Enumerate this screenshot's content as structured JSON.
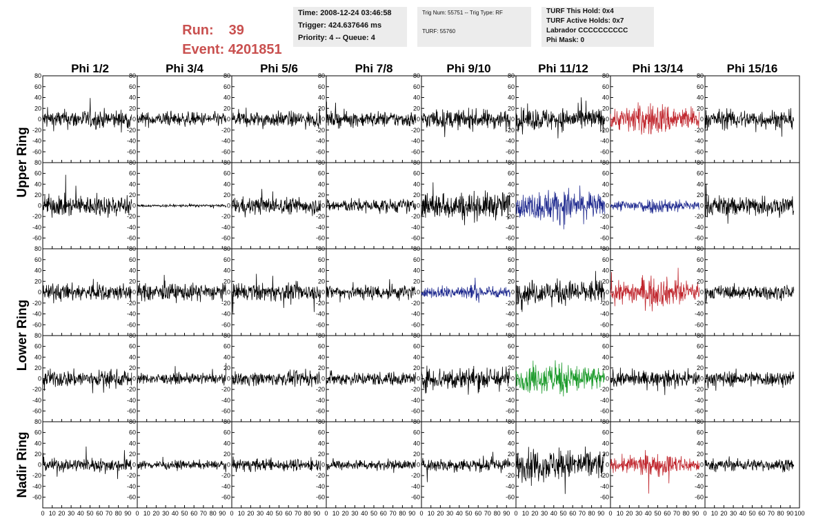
{
  "header": {
    "run_label": "Run:",
    "run_value": "39",
    "event_label": "Event:",
    "event_value": "4201851",
    "time_line": "Time: 2008-12-24 03:46:58",
    "trigger_line": "Trigger: 424.637646 ms",
    "priority_line": "Priority: 4 -- Queue: 4",
    "trig_num_line": "Trig Num: 55751 -- Trig Type: RF",
    "turf_line": "TURF: 55760",
    "turf_hold_line": "TURF This Hold: 0x4",
    "turf_active_line": "TURF Active Holds: 0x7",
    "labrador_line": "Labrador CCCCCCCCCC",
    "phi_mask_line": "Phi Mask: 0"
  },
  "colors": {
    "header_red": "#c9504f",
    "default_trace": "#000000",
    "red": "#c0262d",
    "blue": "#1f2a8f",
    "green": "#1b9a2a"
  },
  "chart_data": {
    "type": "line",
    "columns": [
      "Phi 1/2",
      "Phi 3/4",
      "Phi 5/6",
      "Phi 7/8",
      "Phi 9/10",
      "Phi 11/12",
      "Phi 13/14",
      "Phi 15/16"
    ],
    "row_labels": [
      "Upper Ring",
      "Lower Ring",
      "Nadir Ring"
    ],
    "rows": 5,
    "ylim": [
      -80,
      80
    ],
    "yticks": [
      -60,
      -40,
      -20,
      0,
      20,
      40,
      60,
      80
    ],
    "xlim": [
      0,
      100
    ],
    "xticks": [
      0,
      10,
      20,
      30,
      40,
      50,
      60,
      70,
      80,
      90,
      100
    ],
    "amplitude": [
      [
        22,
        16,
        18,
        18,
        22,
        26,
        38,
        22
      ],
      [
        24,
        3,
        20,
        16,
        32,
        40,
        18,
        24
      ],
      [
        20,
        20,
        20,
        18,
        18,
        28,
        34,
        16
      ],
      [
        20,
        12,
        16,
        16,
        28,
        40,
        18,
        18
      ],
      [
        16,
        10,
        14,
        12,
        16,
        36,
        26,
        14
      ]
    ],
    "colors": [
      [
        "default",
        "default",
        "default",
        "default",
        "default",
        "default",
        "red",
        "default"
      ],
      [
        "default",
        "default",
        "default",
        "default",
        "default",
        "blue",
        "blue",
        "default"
      ],
      [
        "default",
        "default",
        "default",
        "default",
        "blue",
        "default",
        "red",
        "default"
      ],
      [
        "default",
        "default",
        "default",
        "default",
        "default",
        "green",
        "default",
        "default"
      ],
      [
        "default",
        "default",
        "default",
        "default",
        "default",
        "default",
        "red",
        "default"
      ]
    ]
  }
}
